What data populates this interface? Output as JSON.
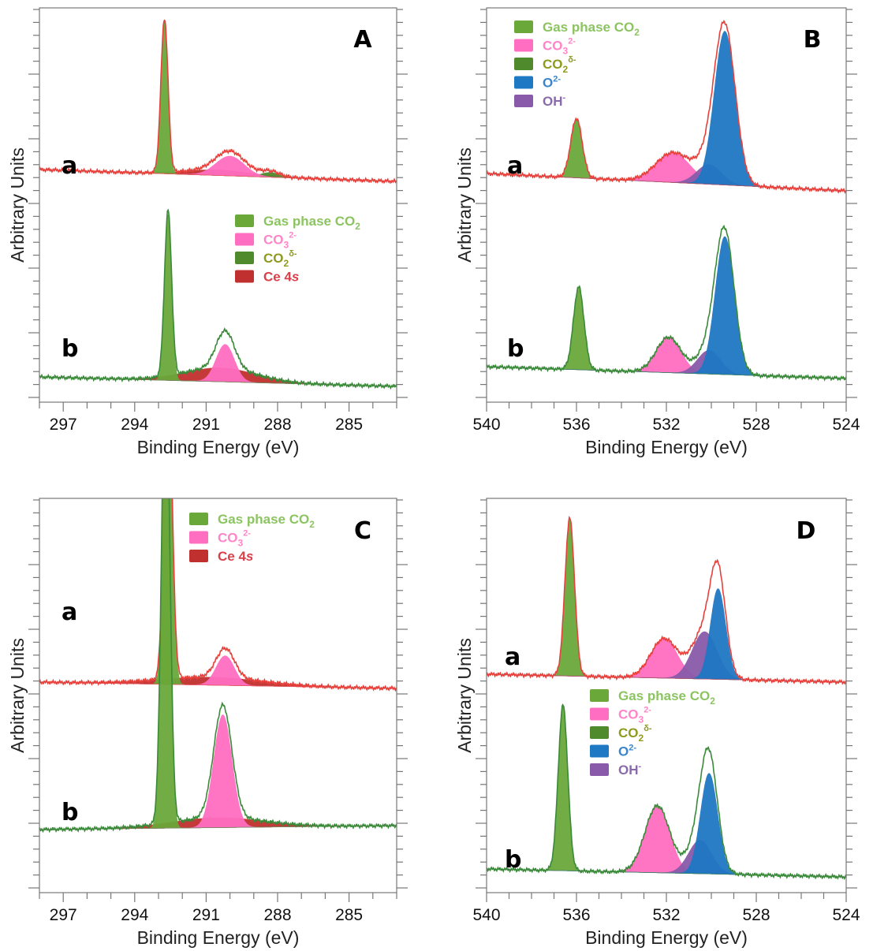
{
  "chart_data": [
    {
      "type": "area",
      "panel_label": "A",
      "xlabel": "Binding Energy (eV)",
      "ylabel": "Arbitrary Units",
      "xlim": [
        298,
        283
      ],
      "ylim": [
        0,
        10
      ],
      "xticks": [
        297,
        294,
        291,
        288,
        285
      ],
      "x_minor_step": 1,
      "legend": [
        "gas",
        "co3",
        "co2d",
        "ce4s"
      ],
      "spectra": [
        {
          "label": "a",
          "envelope_color": "#e8413c",
          "baseline": [
            5.9,
            5.6
          ],
          "components": [
            {
              "key": "ce4s",
              "center": 290.5,
              "fwhm": 3.2,
              "height": 0.14
            },
            {
              "key": "co2d",
              "center": 288.3,
              "fwhm": 0.9,
              "height": 0.12
            },
            {
              "key": "gas",
              "center": 292.75,
              "fwhm": 0.35,
              "height": 3.9
            },
            {
              "key": "co3",
              "center": 290.0,
              "fwhm": 1.4,
              "height": 0.5
            }
          ]
        },
        {
          "label": "b",
          "envelope_color": "#3a8a3a",
          "baseline": [
            0.64,
            0.4
          ],
          "components": [
            {
              "key": "ce4s",
              "center": 290.4,
              "fwhm": 3.5,
              "height": 0.35
            },
            {
              "key": "gas",
              "center": 292.6,
              "fwhm": 0.35,
              "height": 4.2
            },
            {
              "key": "co3",
              "center": 290.2,
              "fwhm": 0.9,
              "height": 0.95
            }
          ]
        }
      ]
    },
    {
      "type": "area",
      "panel_label": "B",
      "xlabel": "Binding Energy (eV)",
      "ylabel": "Arbitrary Units",
      "xlim": [
        540,
        524
      ],
      "ylim": [
        0,
        10
      ],
      "xticks": [
        540,
        536,
        532,
        528,
        524
      ],
      "x_minor_step": 1,
      "legend": [
        "gas",
        "co3",
        "co2d",
        "o2",
        "oh"
      ],
      "spectra": [
        {
          "label": "a",
          "envelope_color": "#e8413c",
          "baseline": [
            5.8,
            5.36
          ],
          "components": [
            {
              "key": "gas",
              "center": 536.0,
              "fwhm": 0.6,
              "height": 1.5
            },
            {
              "key": "co3",
              "center": 531.7,
              "fwhm": 1.8,
              "height": 0.75
            },
            {
              "key": "oh",
              "center": 530.1,
              "fwhm": 1.3,
              "height": 0.5
            },
            {
              "key": "o2",
              "center": 529.4,
              "fwhm": 1.1,
              "height": 3.9
            }
          ]
        },
        {
          "label": "b",
          "envelope_color": "#3a8a3a",
          "baseline": [
            0.9,
            0.6
          ],
          "components": [
            {
              "key": "gas",
              "center": 535.9,
              "fwhm": 0.55,
              "height": 2.1
            },
            {
              "key": "co3",
              "center": 531.9,
              "fwhm": 1.3,
              "height": 0.9
            },
            {
              "key": "oh",
              "center": 530.1,
              "fwhm": 1.2,
              "height": 0.6
            },
            {
              "key": "o2",
              "center": 529.4,
              "fwhm": 1.0,
              "height": 3.5
            }
          ]
        }
      ]
    },
    {
      "type": "area",
      "panel_label": "C",
      "xlabel": "Binding Energy (eV)",
      "ylabel": "Arbitrary Units",
      "xlim": [
        298,
        283
      ],
      "ylim": [
        0,
        10
      ],
      "xticks": [
        297,
        294,
        291,
        288,
        285
      ],
      "x_minor_step": 1,
      "legend": [
        "gas",
        "co3",
        "ce4s"
      ],
      "spectra": [
        {
          "label": "a",
          "envelope_color": "#e8413c",
          "baseline": [
            5.34,
            5.18
          ],
          "components": [
            {
              "key": "ce4s",
              "center": 290.8,
              "fwhm": 5.0,
              "height": 0.2
            },
            {
              "key": "gas",
              "center": 292.6,
              "fwhm": 0.4,
              "height": 8.0
            },
            {
              "key": "co3",
              "center": 290.2,
              "fwhm": 0.9,
              "height": 0.75
            }
          ]
        },
        {
          "label": "b",
          "envelope_color": "#3a8a3a",
          "baseline": [
            1.6,
            1.7
          ],
          "components": [
            {
              "key": "ce4s",
              "center": 290.5,
              "fwhm": 4.5,
              "height": 0.25
            },
            {
              "key": "gas",
              "center": 292.7,
              "fwhm": 0.4,
              "height": 12.0
            },
            {
              "key": "co3",
              "center": 290.3,
              "fwhm": 0.9,
              "height": 2.86
            }
          ]
        }
      ]
    },
    {
      "type": "area",
      "panel_label": "D",
      "xlabel": "Binding Energy (eV)",
      "ylabel": "Arbitrary Units",
      "xlim": [
        540,
        524
      ],
      "ylim": [
        0,
        10
      ],
      "xticks": [
        540,
        536,
        532,
        528,
        524
      ],
      "x_minor_step": 1,
      "legend": [
        "gas",
        "co3",
        "co2d",
        "o2",
        "oh"
      ],
      "spectra": [
        {
          "label": "a",
          "envelope_color": "#e8413c",
          "baseline": [
            5.54,
            5.34
          ],
          "components": [
            {
              "key": "gas",
              "center": 536.3,
              "fwhm": 0.5,
              "height": 4.0
            },
            {
              "key": "co3",
              "center": 532.1,
              "fwhm": 1.4,
              "height": 1.0
            },
            {
              "key": "oh",
              "center": 530.3,
              "fwhm": 1.3,
              "height": 1.2
            },
            {
              "key": "o2",
              "center": 529.7,
              "fwhm": 0.8,
              "height": 2.3
            }
          ]
        },
        {
          "label": "b",
          "envelope_color": "#3a8a3a",
          "baseline": [
            0.6,
            0.4
          ],
          "components": [
            {
              "key": "gas",
              "center": 536.6,
              "fwhm": 0.5,
              "height": 4.2
            },
            {
              "key": "co3",
              "center": 532.4,
              "fwhm": 1.3,
              "height": 1.7
            },
            {
              "key": "oh",
              "center": 530.5,
              "fwhm": 1.2,
              "height": 0.85
            },
            {
              "key": "o2",
              "center": 530.1,
              "fwhm": 0.9,
              "height": 2.55
            }
          ]
        }
      ]
    }
  ],
  "series_styles": {
    "gas": {
      "label": {
        "main": "Gas phase CO",
        "sub": "2",
        "sup": "",
        "italic_tail": ""
      },
      "fill": "#6aa83a",
      "text_color": "#8cc462"
    },
    "co3": {
      "label": {
        "main": "CO",
        "sub": "3",
        "sup": "2-",
        "italic_tail": ""
      },
      "fill": "#ff6ec0",
      "text_color": "#ff85c8"
    },
    "co2d": {
      "label": {
        "main": "CO",
        "sub": "2",
        "sup": "δ-",
        "italic_tail": ""
      },
      "fill": "#4f8a2c",
      "text_color": "#8f9a1e"
    },
    "o2": {
      "label": {
        "main": "O",
        "sub": "",
        "sup": "2-",
        "italic_tail": ""
      },
      "fill": "#1f78c4",
      "text_color": "#3a86cc"
    },
    "oh": {
      "label": {
        "main": "OH",
        "sub": "",
        "sup": "-",
        "italic_tail": ""
      },
      "fill": "#8a5aaa",
      "text_color": "#8a6aaa"
    },
    "ce4s": {
      "label": {
        "main": "Ce 4",
        "sub": "",
        "sup": "",
        "italic_tail": "s"
      },
      "fill": "#c0302f",
      "text_color": "#d9404a"
    }
  }
}
